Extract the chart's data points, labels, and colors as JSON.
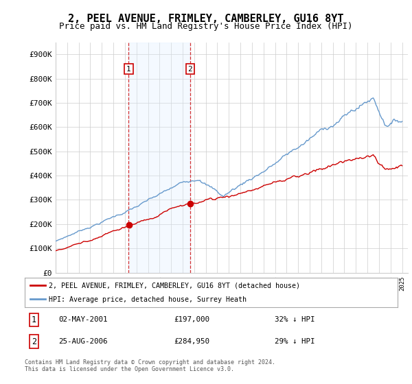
{
  "title": "2, PEEL AVENUE, FRIMLEY, CAMBERLEY, GU16 8YT",
  "subtitle": "Price paid vs. HM Land Registry's House Price Index (HPI)",
  "ylim": [
    0,
    950000
  ],
  "yticks": [
    0,
    100000,
    200000,
    300000,
    400000,
    500000,
    600000,
    700000,
    800000,
    900000
  ],
  "ytick_labels": [
    "£0",
    "£100K",
    "£200K",
    "£300K",
    "£400K",
    "£500K",
    "£600K",
    "£700K",
    "£800K",
    "£900K"
  ],
  "xlim_start": 1995.0,
  "xlim_end": 2025.5,
  "sale1_date": 2001.33,
  "sale1_price": 197000,
  "sale2_date": 2006.65,
  "sale2_price": 284950,
  "sale1_info": "02-MAY-2001",
  "sale1_price_str": "£197,000",
  "sale1_hpi_str": "32% ↓ HPI",
  "sale2_info": "25-AUG-2006",
  "sale2_price_str": "£284,950",
  "sale2_hpi_str": "29% ↓ HPI",
  "red_color": "#cc0000",
  "blue_color": "#6699cc",
  "shade_color": "#ddeeff",
  "grid_color": "#cccccc",
  "legend_line1": "2, PEEL AVENUE, FRIMLEY, CAMBERLEY, GU16 8YT (detached house)",
  "legend_line2": "HPI: Average price, detached house, Surrey Heath",
  "footnote": "Contains HM Land Registry data © Crown copyright and database right 2024.\nThis data is licensed under the Open Government Licence v3.0.",
  "title_fontsize": 11,
  "subtitle_fontsize": 9,
  "bg_color": "#ffffff"
}
